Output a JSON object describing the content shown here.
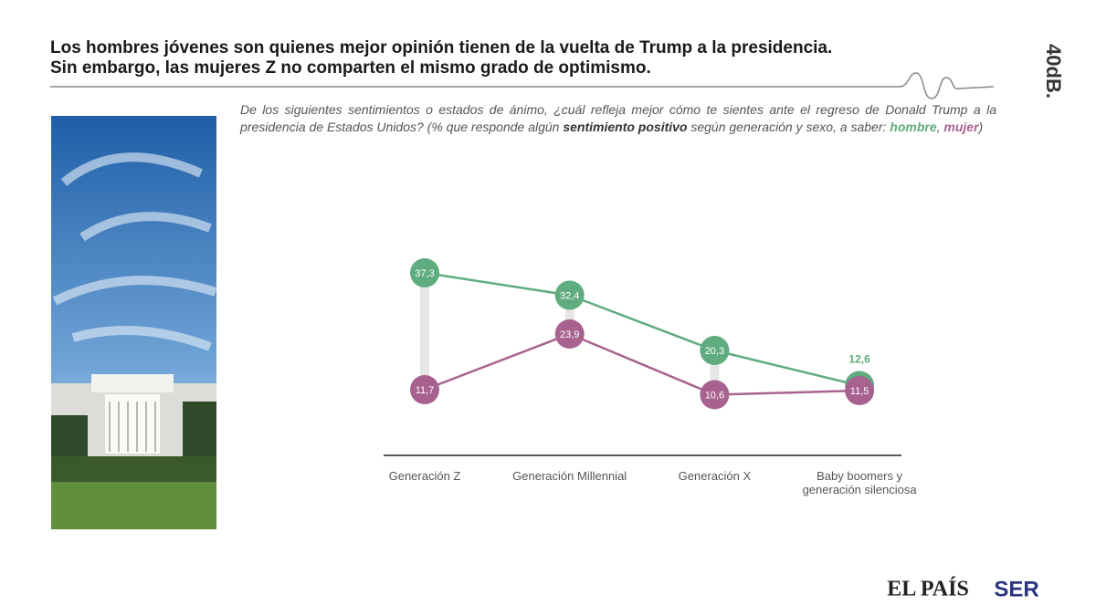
{
  "chart_data": {
    "type": "line",
    "title": [
      "Los hombres jóvenes son quienes mejor opinión tienen de la vuelta de Trump a la presidencia.",
      "Sin embargo, las mujeres Z no comparten el mismo grado de optimismo."
    ],
    "subtitle": {
      "text1": "De los siguientes sentimientos o estados de ánimo, ¿cuál refleja mejor cómo te sientes ante el regreso de Donald Trump a la presidencia de Estados Unidos? (% que responde algún ",
      "emphasis": "sentimiento positivo",
      "text2": " según generación y sexo, a saber: ",
      "separator": ",",
      "close": ")"
    },
    "categories": [
      "Generación Z",
      "Generación Millennial",
      "Generación X",
      "Baby boomers y generación silenciosa"
    ],
    "series": [
      {
        "name": "hombre",
        "color": "#5fac7f",
        "values": [
          37.3,
          32.4,
          20.3,
          12.6
        ],
        "value_labels": [
          "37,3",
          "32,4",
          "20,3",
          "12,6"
        ]
      },
      {
        "name": "mujer",
        "color": "#a8628f",
        "values": [
          11.7,
          23.9,
          10.6,
          11.5
        ],
        "value_labels": [
          "11,7",
          "23,9",
          "10,6",
          "11,5"
        ]
      }
    ],
    "ylim": [
      0,
      40
    ]
  },
  "logos": {
    "brand": "40dB.",
    "partner1": "EL PAÍS",
    "partner2": "SER"
  }
}
